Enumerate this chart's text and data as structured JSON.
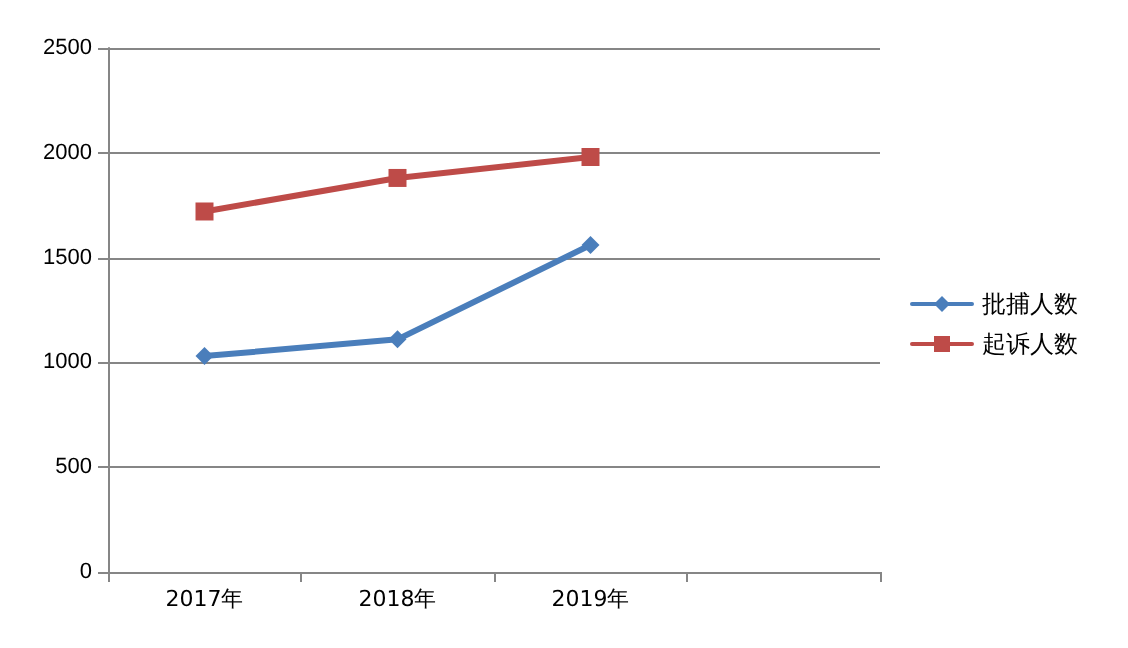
{
  "chart_data": {
    "type": "line",
    "categories": [
      "2017年",
      "2018年",
      "2019年",
      null
    ],
    "series": [
      {
        "name": "批捕人数",
        "color": "#4a7ebb",
        "values": [
          1030,
          1110,
          1560,
          null
        ],
        "marker": "diamond"
      },
      {
        "name": "起诉人数",
        "color": "#be4b48",
        "values": [
          1720,
          1880,
          1980,
          null
        ],
        "marker": "square"
      }
    ],
    "ylim": [
      0,
      2500
    ],
    "yticks": [
      0,
      500,
      1000,
      1500,
      2000,
      2500
    ],
    "grid": "y",
    "legend": "right",
    "line_style": "solid"
  }
}
